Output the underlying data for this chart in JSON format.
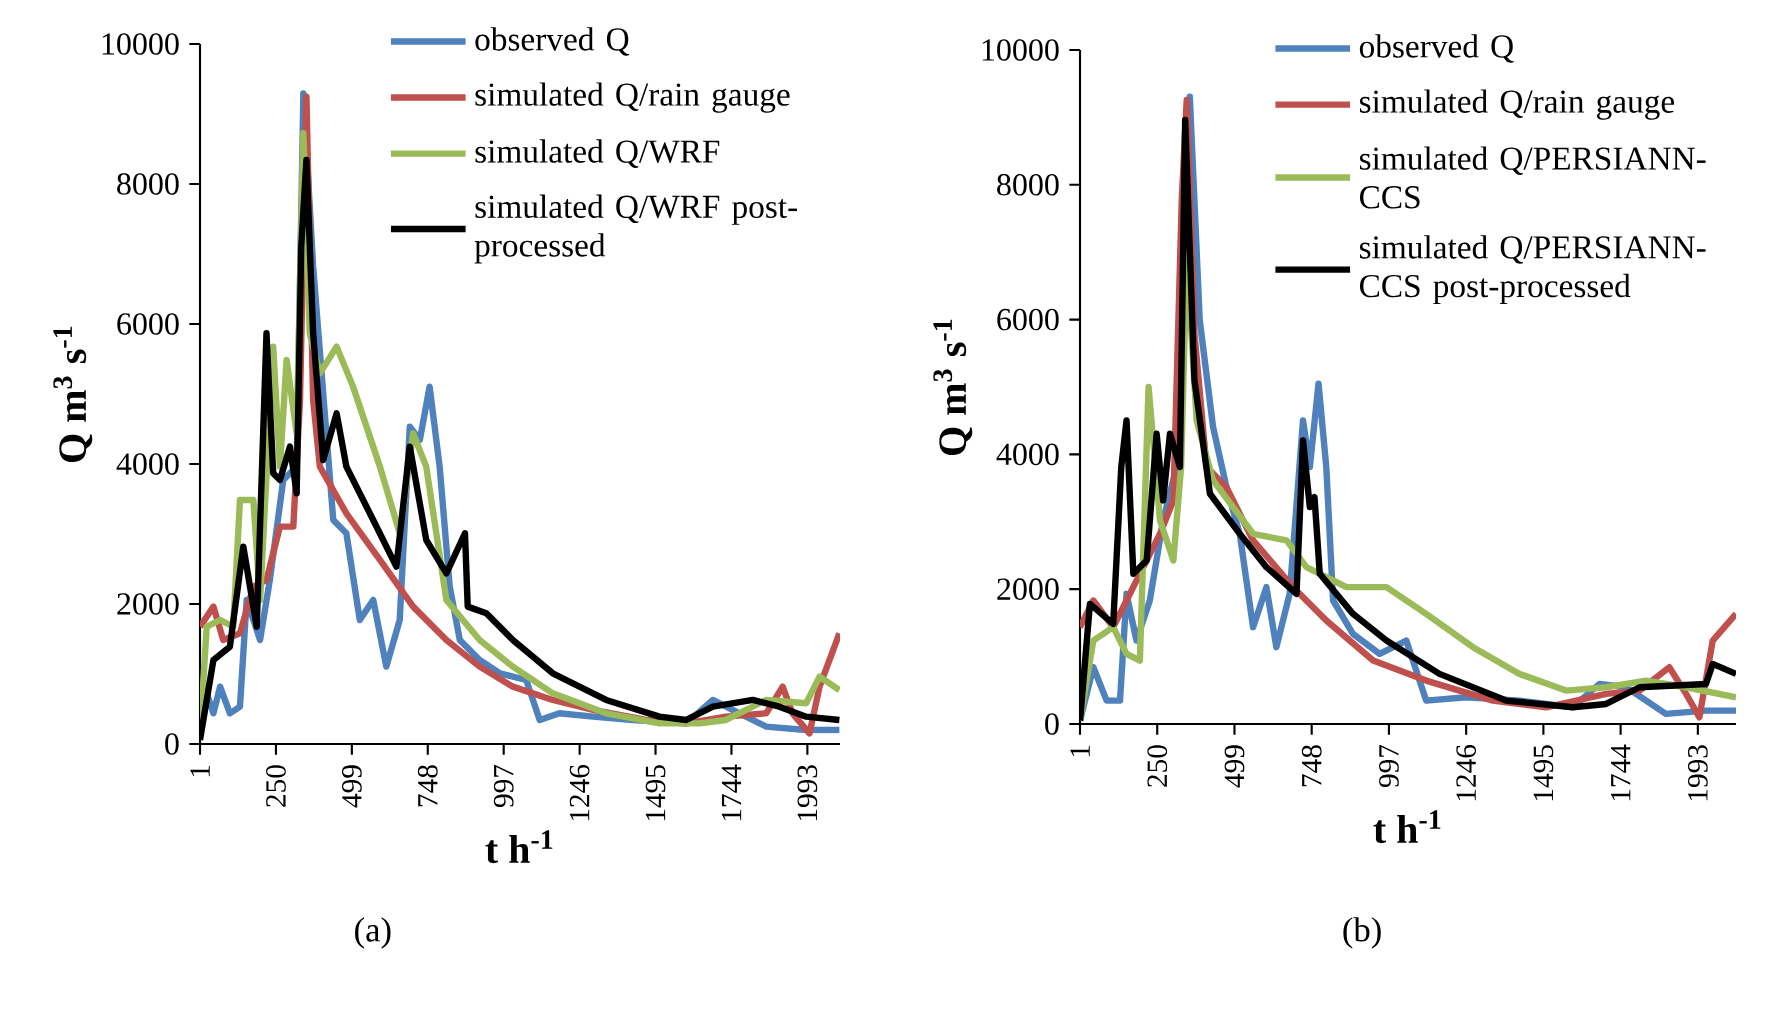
{
  "chart_data": [
    {
      "type": "line",
      "xlabel": "t h$^{-1}$",
      "ylabel": "Q m$^{3}$ s$^{-1}$",
      "annotations": [
        "(a)"
      ],
      "legend": "top right",
      "xlim": [
        1,
        2100
      ],
      "xticks": [
        1,
        250,
        499,
        748,
        997,
        1246,
        1495,
        1744,
        1993
      ],
      "ylim": [
        0,
        10000
      ],
      "yticks": [
        0,
        2000,
        4000,
        6000,
        8000,
        10000
      ],
      "series": [
        {
          "name": "observed Q",
          "color": "#4f81bd",
          "x": [
            1,
            23,
            45,
            67,
            99,
            132,
            154,
            198,
            230,
            274,
            318,
            340,
            372,
            405,
            438,
            481,
            525,
            569,
            612,
            656,
            689,
            722,
            754,
            787,
            820,
            853,
            918,
            984,
            1071,
            1115,
            1180,
            1290,
            1421,
            1596,
            1683,
            1770,
            1858,
            1989,
            2098
          ],
          "values": [
            300,
            724,
            438,
            819,
            438,
            533,
            2057,
            1486,
            2343,
            3771,
            3962,
            9295,
            6819,
            5010,
            3200,
            3010,
            1771,
            2057,
            1105,
            1771,
            4533,
            4343,
            5105,
            3962,
            2248,
            1486,
            1200,
            1010,
            914,
            343,
            438,
            390,
            343,
            295,
            629,
            438,
            248,
            200,
            200
          ]
        },
        {
          "name": "simulated Q/rain gauge",
          "color": "#c0504d",
          "x": [
            1,
            45,
            77,
            132,
            176,
            219,
            263,
            307,
            329,
            350,
            372,
            394,
            481,
            591,
            700,
            809,
            918,
            1027,
            1158,
            1290,
            1464,
            1596,
            1726,
            1858,
            1912,
            1944,
            2000,
            2033,
            2098
          ],
          "values": [
            1676,
            1962,
            1486,
            1581,
            2248,
            2343,
            3105,
            3105,
            4914,
            9248,
            4914,
            3962,
            3295,
            2629,
            1962,
            1486,
            1105,
            819,
            629,
            486,
            343,
            295,
            390,
            438,
            819,
            438,
            152,
            819,
            1581
          ]
        },
        {
          "name": "simulated Q/WRF",
          "color": "#9bbb59",
          "x": [
            1,
            23,
            67,
            110,
            132,
            176,
            198,
            241,
            263,
            285,
            318,
            340,
            361,
            394,
            449,
            503,
            591,
            656,
            700,
            743,
            809,
            918,
            1027,
            1158,
            1333,
            1508,
            1639,
            1726,
            1858,
            1989,
            2033,
            2098
          ],
          "values": [
            152,
            1676,
            1771,
            1676,
            3486,
            3486,
            2057,
            5676,
            3962,
            5486,
            4438,
            8724,
            5867,
            5295,
            5676,
            5105,
            3962,
            3010,
            4438,
            3962,
            2057,
            1486,
            1105,
            724,
            438,
            295,
            295,
            343,
            629,
            581,
            962,
            771
          ]
        },
        {
          "name": "simulated Q/WRF post-processed",
          "color": "#000000",
          "x": [
            1,
            45,
            99,
            143,
            187,
            219,
            241,
            263,
            296,
            318,
            333,
            350,
            372,
            405,
            449,
            481,
            569,
            645,
            689,
            743,
            809,
            870,
            879,
            940,
            1027,
            1158,
            1333,
            1508,
            1596,
            1683,
            1814,
            1901,
            1989,
            2098
          ],
          "values": [
            57,
            1200,
            1390,
            2819,
            1676,
            5867,
            3867,
            3771,
            4248,
            3581,
            7105,
            8343,
            5867,
            4057,
            4724,
            3962,
            3200,
            2533,
            4248,
            2914,
            2438,
            3010,
            1962,
            1867,
            1486,
            1010,
            629,
            390,
            343,
            533,
            629,
            533,
            390,
            343
          ]
        }
      ]
    },
    {
      "type": "line",
      "xlabel": "t h$^{-1}$",
      "ylabel": "Q m$^{3}$ s$^{-1}$",
      "annotations": [
        "(b)"
      ],
      "legend": "top right",
      "xlim": [
        1,
        2116
      ],
      "xticks": [
        1,
        250,
        499,
        748,
        997,
        1246,
        1495,
        1744,
        1993
      ],
      "ylim": [
        0,
        10000
      ],
      "yticks": [
        0,
        2000,
        4000,
        6000,
        8000,
        10000
      ],
      "series": [
        {
          "name": "observed Q",
          "color": "#4f81bd",
          "x": [
            1,
            44,
            87,
            130,
            151,
            183,
            226,
            269,
            312,
            355,
            387,
            430,
            473,
            516,
            559,
            602,
            634,
            677,
            720,
            742,
            770,
            795,
            817,
            881,
            967,
            1053,
            1117,
            1246,
            1418,
            1590,
            1676,
            1762,
            1890,
            2019,
            2116
          ],
          "values": [
            50,
            842,
            347,
            347,
            1931,
            1238,
            1832,
            3020,
            3812,
            9307,
            5990,
            4406,
            3515,
            2822,
            1436,
            2030,
            1139,
            1931,
            4505,
            3812,
            5050,
            3812,
            1832,
            1337,
            1040,
            1238,
            347,
            396,
            347,
            248,
            594,
            545,
            149,
            198,
            198
          ]
        },
        {
          "name": "simulated Q/rain gauge",
          "color": "#c0504d",
          "x": [
            1,
            44,
            108,
            151,
            194,
            259,
            302,
            329,
            345,
            370,
            409,
            473,
            559,
            688,
            795,
            946,
            1117,
            1332,
            1504,
            1697,
            1805,
            1901,
            1955,
            1998,
            2041,
            2116
          ],
          "values": [
            1436,
            1832,
            1436,
            1832,
            2228,
            2822,
            3317,
            7772,
            9257,
            5792,
            3812,
            3515,
            2723,
            2030,
            1535,
            941,
            644,
            347,
            248,
            446,
            495,
            842,
            446,
            99,
            1238,
            1634
          ]
        },
        {
          "name": "simulated Q/PERSIANN-CCS",
          "color": "#9bbb59",
          "x": [
            1,
            44,
            108,
            151,
            194,
            222,
            259,
            302,
            327,
            345,
            377,
            430,
            559,
            667,
            731,
            860,
            989,
            1117,
            1268,
            1418,
            1568,
            1697,
            1826,
            1955,
            2116
          ],
          "values": [
            50,
            1238,
            1436,
            1040,
            941,
            5000,
            3020,
            2426,
            3812,
            6980,
            4505,
            3614,
            2822,
            2723,
            2327,
            2030,
            2030,
            1634,
            1139,
            743,
            495,
            545,
            644,
            545,
            396
          ]
        },
        {
          "name": "simulated Q/PERSIANN-CCS post-processed",
          "color": "#000000",
          "x": [
            1,
            33,
            108,
            134,
            151,
            173,
            216,
            248,
            269,
            291,
            323,
            340,
            370,
            420,
            516,
            602,
            699,
            720,
            742,
            757,
            774,
            881,
            989,
            1160,
            1375,
            1590,
            1697,
            1805,
            2019,
            2041,
            2116
          ],
          "values": [
            50,
            1782,
            1485,
            3812,
            4505,
            2228,
            2426,
            4307,
            3317,
            4307,
            3812,
            8960,
            5099,
            3416,
            2822,
            2327,
            1931,
            4208,
            3218,
            3366,
            2228,
            1634,
            1238,
            743,
            347,
            248,
            297,
            545,
            594,
            891,
            743
          ]
        }
      ]
    }
  ]
}
